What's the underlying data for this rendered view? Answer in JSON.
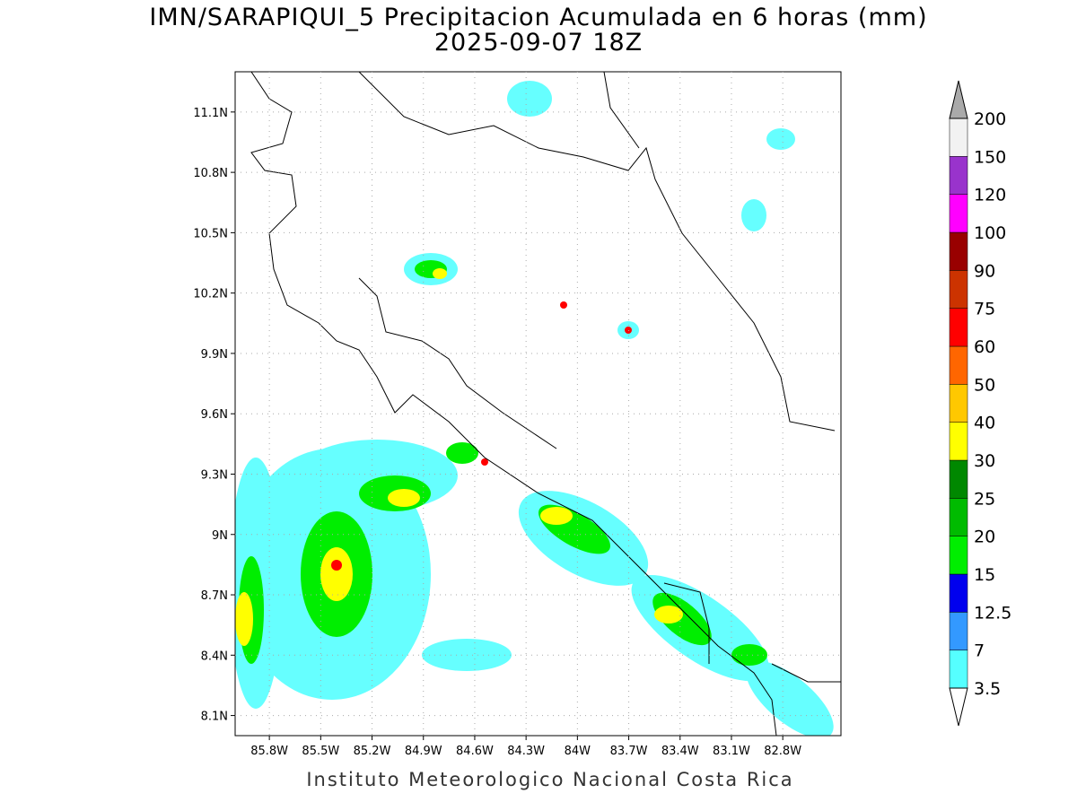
{
  "title": "IMN/SARAPIQUI_5 Precipitacion Acumulada en 6 horas (mm)",
  "subtitle": "2025-09-07 18Z",
  "footer": "Instituto Meteorologico Nacional Costa Rica",
  "map": {
    "lat_range": [
      8.0,
      11.3
    ],
    "lon_range": [
      -86.0,
      -82.46
    ],
    "lat_ticks": [
      {
        "value": 8.1,
        "label": "8.1N"
      },
      {
        "value": 8.4,
        "label": "8.4N"
      },
      {
        "value": 8.7,
        "label": "8.7N"
      },
      {
        "value": 9.0,
        "label": "9N"
      },
      {
        "value": 9.3,
        "label": "9.3N"
      },
      {
        "value": 9.6,
        "label": "9.6N"
      },
      {
        "value": 9.9,
        "label": "9.9N"
      },
      {
        "value": 10.2,
        "label": "10.2N"
      },
      {
        "value": 10.5,
        "label": "10.5N"
      },
      {
        "value": 10.8,
        "label": "10.8N"
      },
      {
        "value": 11.1,
        "label": "11.1N"
      }
    ],
    "lon_ticks": [
      {
        "value": -85.8,
        "label": "85.8W"
      },
      {
        "value": -85.5,
        "label": "85.5W"
      },
      {
        "value": -85.2,
        "label": "85.2W"
      },
      {
        "value": -84.9,
        "label": "84.9W"
      },
      {
        "value": -84.6,
        "label": "84.6W"
      },
      {
        "value": -84.3,
        "label": "84.3W"
      },
      {
        "value": -84.0,
        "label": "84W"
      },
      {
        "value": -83.7,
        "label": "83.7W"
      },
      {
        "value": -83.4,
        "label": "83.4W"
      },
      {
        "value": -83.1,
        "label": "83.1W"
      },
      {
        "value": -82.8,
        "label": "82.8W"
      }
    ]
  },
  "colorbar": {
    "levels": [
      3.5,
      7,
      12.5,
      15,
      20,
      25,
      30,
      40,
      50,
      60,
      75,
      90,
      100,
      120,
      150,
      200
    ],
    "colors": [
      "#55ffff",
      "#3399ff",
      "#0000ee",
      "#00ee00",
      "#00bb00",
      "#008800",
      "#ffff00",
      "#ffc800",
      "#ff6600",
      "#ff0000",
      "#cc3300",
      "#990000",
      "#ff00ff",
      "#9933cc",
      "#f2f2f2"
    ],
    "over_color": "#aaaaaa",
    "under_color": "#ffffff"
  }
}
